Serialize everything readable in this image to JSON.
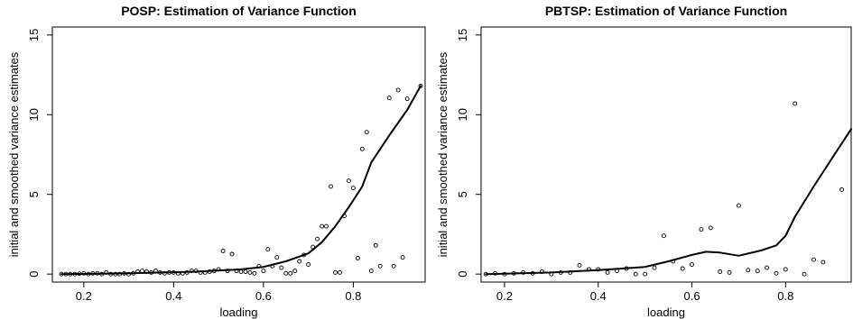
{
  "chart_data": [
    {
      "type": "scatter",
      "title": "POSP: Estimation of Variance Function",
      "xlabel": "loading",
      "ylabel": "initial and smoothed variance estimates",
      "xlim": [
        0.13,
        0.96
      ],
      "ylim": [
        -0.5,
        15.5
      ],
      "xticks": [
        0.2,
        0.4,
        0.6,
        0.8
      ],
      "xtick_labels": [
        "0.2",
        "0.4",
        "0.6",
        "0.8"
      ],
      "yticks": [
        0,
        5,
        10,
        15
      ],
      "ytick_labels": [
        "0",
        "5",
        "10",
        "15"
      ],
      "grid": false,
      "series": [
        {
          "kind": "points",
          "x": [
            0.15,
            0.16,
            0.17,
            0.18,
            0.19,
            0.2,
            0.21,
            0.22,
            0.23,
            0.24,
            0.25,
            0.26,
            0.27,
            0.28,
            0.29,
            0.3,
            0.31,
            0.32,
            0.33,
            0.34,
            0.35,
            0.36,
            0.37,
            0.38,
            0.39,
            0.4,
            0.41,
            0.42,
            0.43,
            0.44,
            0.45,
            0.46,
            0.47,
            0.48,
            0.49,
            0.5,
            0.51,
            0.52,
            0.53,
            0.54,
            0.55,
            0.56,
            0.57,
            0.58,
            0.59,
            0.6,
            0.61,
            0.62,
            0.63,
            0.64,
            0.65,
            0.66,
            0.67,
            0.68,
            0.69,
            0.7,
            0.71,
            0.72,
            0.73,
            0.74,
            0.75,
            0.76,
            0.77,
            0.78,
            0.79,
            0.8,
            0.81,
            0.82,
            0.83,
            0.84,
            0.85,
            0.86,
            0.88,
            0.89,
            0.9,
            0.91,
            0.92,
            0.95
          ],
          "y": [
            0.0,
            0.0,
            0.0,
            0.0,
            0.02,
            0.05,
            0.0,
            0.05,
            0.05,
            0.0,
            0.1,
            0.0,
            0.0,
            0.0,
            0.05,
            0.0,
            0.05,
            0.15,
            0.2,
            0.15,
            0.1,
            0.2,
            0.1,
            0.05,
            0.1,
            0.1,
            0.05,
            0.05,
            0.1,
            0.2,
            0.2,
            0.1,
            0.1,
            0.15,
            0.2,
            0.3,
            1.45,
            0.2,
            1.25,
            0.2,
            0.15,
            0.15,
            0.1,
            0.05,
            0.5,
            0.2,
            1.55,
            0.5,
            1.05,
            0.4,
            0.05,
            0.05,
            0.2,
            0.8,
            1.2,
            0.6,
            1.7,
            2.2,
            3.0,
            3.0,
            5.5,
            0.1,
            0.1,
            3.65,
            5.85,
            5.4,
            1.0,
            7.85,
            8.9,
            0.2,
            1.8,
            0.5,
            11.05,
            0.5,
            11.55,
            1.05,
            11.0,
            11.8
          ]
        },
        {
          "kind": "line",
          "x": [
            0.15,
            0.3,
            0.45,
            0.55,
            0.6,
            0.65,
            0.7,
            0.73,
            0.76,
            0.79,
            0.82,
            0.84,
            0.88,
            0.92,
            0.95
          ],
          "y": [
            0.0,
            0.05,
            0.15,
            0.3,
            0.45,
            0.8,
            1.3,
            2.0,
            3.0,
            4.2,
            5.5,
            7.0,
            8.7,
            10.3,
            11.8
          ]
        }
      ]
    },
    {
      "type": "scatter",
      "title": "PBTSP: Estimation of Variance Function",
      "xlabel": "loading",
      "ylabel": "initial and smoothed variance estimates",
      "xlim": [
        0.15,
        0.94
      ],
      "ylim": [
        -0.5,
        15.5
      ],
      "xticks": [
        0.2,
        0.4,
        0.6,
        0.8
      ],
      "xtick_labels": [
        "0.2",
        "0.4",
        "0.6",
        "0.8"
      ],
      "yticks": [
        0,
        5,
        10,
        15
      ],
      "ytick_labels": [
        "0",
        "5",
        "10",
        "15"
      ],
      "grid": false,
      "series": [
        {
          "kind": "points",
          "x": [
            0.16,
            0.18,
            0.2,
            0.22,
            0.24,
            0.26,
            0.28,
            0.3,
            0.32,
            0.34,
            0.36,
            0.38,
            0.4,
            0.42,
            0.44,
            0.46,
            0.48,
            0.5,
            0.52,
            0.54,
            0.56,
            0.58,
            0.6,
            0.62,
            0.64,
            0.66,
            0.68,
            0.7,
            0.72,
            0.74,
            0.76,
            0.78,
            0.8,
            0.82,
            0.84,
            0.86,
            0.88,
            0.92
          ],
          "y": [
            0.0,
            0.05,
            0.0,
            0.05,
            0.1,
            0.05,
            0.15,
            0.0,
            0.1,
            0.1,
            0.55,
            0.3,
            0.3,
            0.1,
            0.2,
            0.35,
            0.0,
            0.0,
            0.4,
            2.4,
            0.8,
            0.35,
            0.6,
            2.8,
            2.9,
            0.15,
            0.1,
            4.3,
            0.25,
            0.2,
            0.4,
            0.05,
            0.3,
            10.7,
            0.0,
            0.9,
            0.75,
            5.3
          ]
        },
        {
          "kind": "line",
          "x": [
            0.16,
            0.3,
            0.4,
            0.5,
            0.55,
            0.6,
            0.63,
            0.66,
            0.7,
            0.75,
            0.78,
            0.8,
            0.82,
            0.86,
            0.9,
            0.94
          ],
          "y": [
            0.0,
            0.1,
            0.25,
            0.45,
            0.8,
            1.2,
            1.4,
            1.35,
            1.15,
            1.5,
            1.8,
            2.4,
            3.6,
            5.5,
            7.3,
            9.1
          ]
        }
      ]
    }
  ]
}
